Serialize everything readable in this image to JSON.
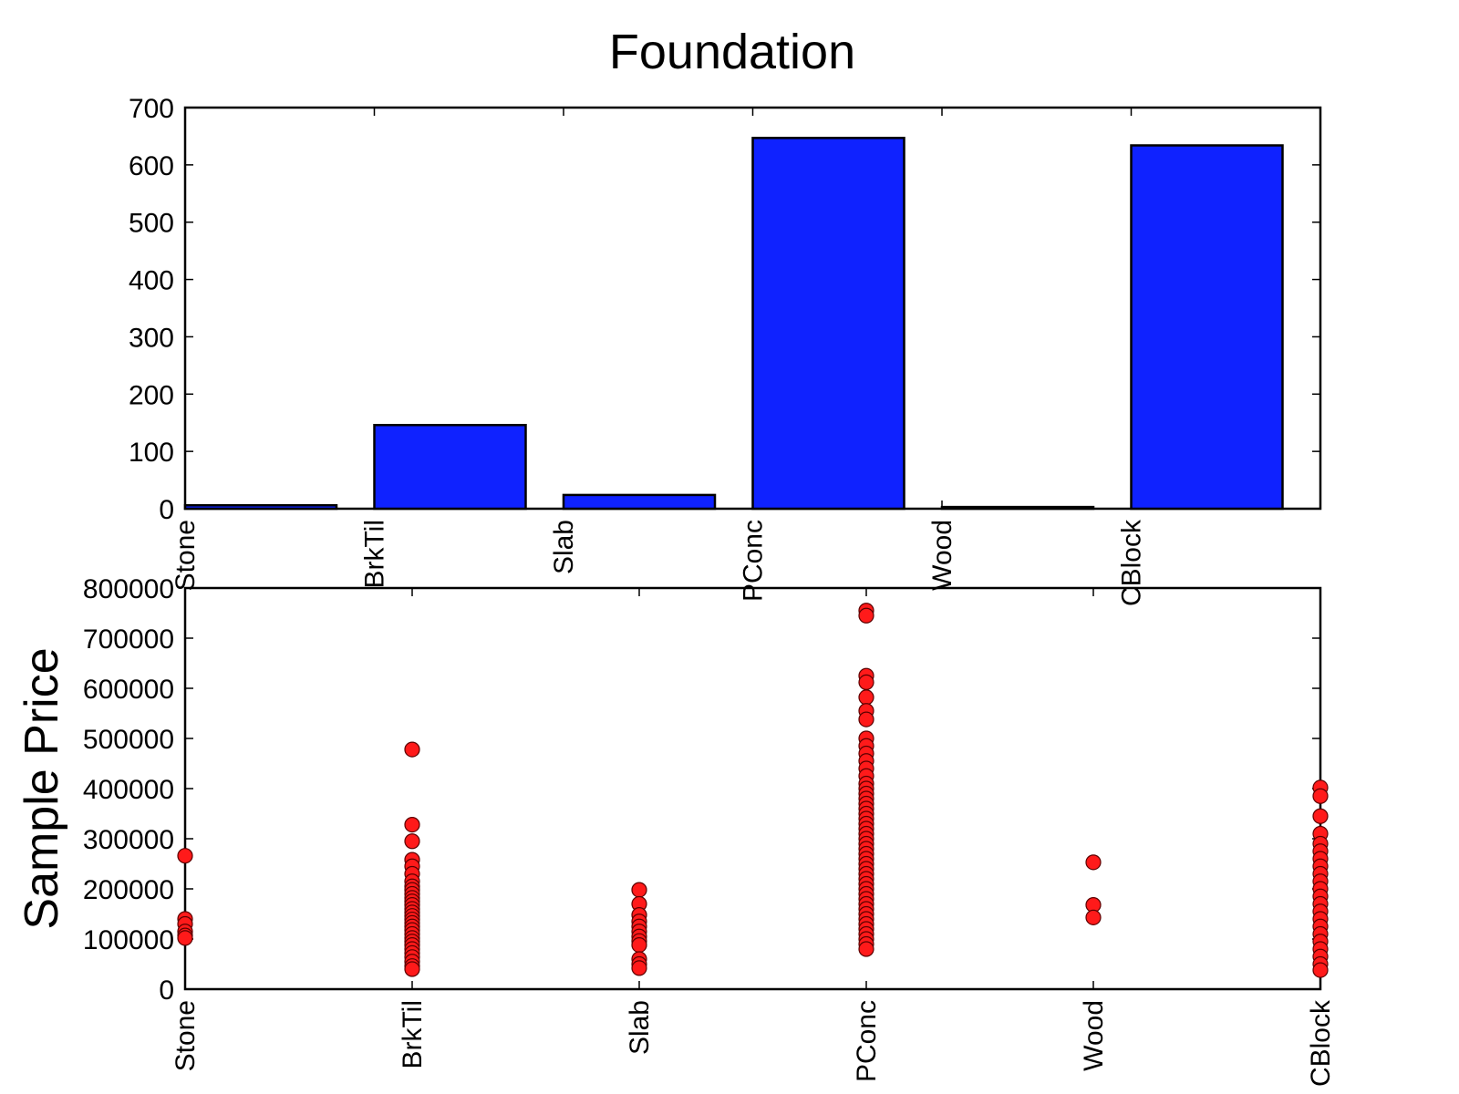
{
  "chart_data": [
    {
      "type": "bar",
      "title": "Foundation",
      "xlabel": "",
      "ylabel": "",
      "categories": [
        "Stone",
        "BrkTil",
        "Slab",
        "PConc",
        "Wood",
        "CBlock"
      ],
      "values": [
        6,
        146,
        24,
        647,
        3,
        634
      ],
      "ylim": [
        0,
        700
      ],
      "yticks": [
        0,
        100,
        200,
        300,
        400,
        500,
        600,
        700
      ],
      "colors": {
        "bar": "#0f22ff",
        "edge": "#000000"
      },
      "grid": false
    },
    {
      "type": "scatter",
      "title": "",
      "xlabel": "",
      "ylabel": "Sample Price",
      "categories": [
        "Stone",
        "BrkTil",
        "Slab",
        "PConc",
        "Wood",
        "CBlock"
      ],
      "ylim": [
        0,
        800000
      ],
      "yticks": [
        0,
        100000,
        200000,
        300000,
        400000,
        500000,
        600000,
        700000,
        800000
      ],
      "colors": {
        "marker": "#ff1a1a",
        "edge": "#5a0000"
      },
      "grid": false,
      "series": [
        {
          "category": "Stone",
          "values": [
            266000,
            140000,
            130000,
            115000,
            107000,
            102000
          ]
        },
        {
          "category": "BrkTil",
          "values": [
            478000,
            328000,
            295000,
            258000,
            245000,
            230000,
            215000,
            205000,
            198000,
            190000,
            182000,
            175000,
            168000,
            160000,
            153000,
            146000,
            139000,
            132000,
            125000,
            118000,
            110000,
            102000,
            95000,
            88000,
            80000,
            72000,
            64000,
            55000,
            46000,
            40000
          ]
        },
        {
          "category": "Slab",
          "values": [
            198000,
            170000,
            148000,
            135000,
            125000,
            115000,
            105000,
            96000,
            88000,
            60000,
            50000,
            42000
          ]
        },
        {
          "category": "PConc",
          "values": [
            755000,
            745000,
            625000,
            612000,
            582000,
            555000,
            538000,
            500000,
            485000,
            470000,
            455000,
            440000,
            425000,
            410000,
            400000,
            390000,
            380000,
            370000,
            360000,
            350000,
            340000,
            330000,
            320000,
            310000,
            300000,
            290000,
            280000,
            270000,
            260000,
            250000,
            240000,
            230000,
            220000,
            210000,
            200000,
            190000,
            180000,
            170000,
            160000,
            150000,
            140000,
            130000,
            120000,
            110000,
            100000,
            90000,
            80000
          ]
        },
        {
          "category": "Wood",
          "values": [
            253000,
            168000,
            143000
          ]
        },
        {
          "category": "CBlock",
          "values": [
            402000,
            385000,
            345000,
            310000,
            290000,
            275000,
            260000,
            245000,
            230000,
            215000,
            200000,
            185000,
            170000,
            155000,
            140000,
            125000,
            110000,
            95000,
            80000,
            65000,
            50000,
            38000
          ]
        }
      ]
    }
  ]
}
